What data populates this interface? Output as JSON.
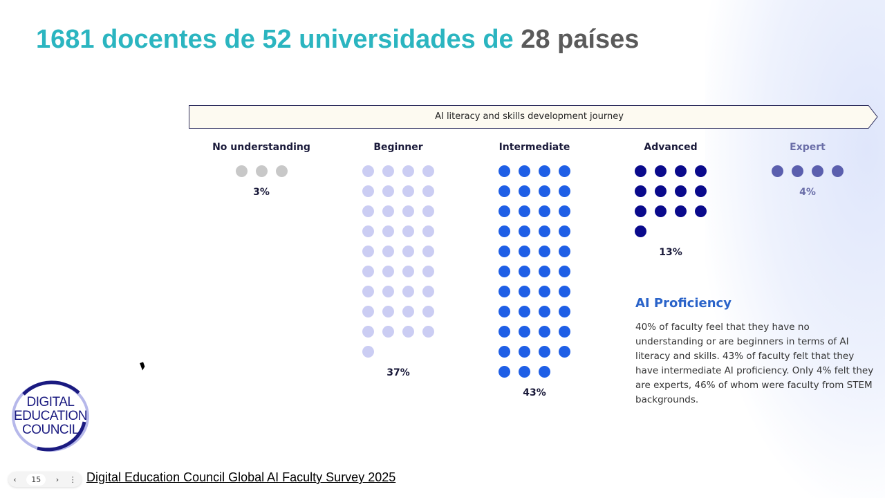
{
  "title": {
    "main": "1681 docentes de 52 universidades de",
    "accent": "28 países"
  },
  "chart_data": {
    "type": "dot-matrix",
    "title": "AI literacy and skills development journey",
    "categories": [
      "No understanding",
      "Beginner",
      "Intermediate",
      "Advanced",
      "Expert"
    ],
    "values": [
      3,
      37,
      43,
      13,
      4
    ],
    "labels": [
      "3%",
      "37%",
      "43%",
      "13%",
      "4%"
    ],
    "colors": [
      "#c8c8c8",
      "#cbcdf3",
      "#1f5fe6",
      "#0a0a8c",
      "#5b5fae"
    ],
    "unit": "percent (1 dot = 1%)"
  },
  "proficiency": {
    "heading": "AI Proficiency",
    "body": "40% of faculty feel that they have no understanding or are beginners in terms of AI literacy and skills. 43% of faculty felt that they have intermediate AI proficiency. Only 4% felt they are experts, 46% of whom were faculty from STEM backgrounds."
  },
  "logo": {
    "text": "DIGITAL EDUCATION COUNCIL"
  },
  "source": "Digital Education Council Global AI Faculty Survey 2025",
  "pager": {
    "page": "15",
    "prev": "‹",
    "next": "›",
    "menu": "⋮"
  }
}
